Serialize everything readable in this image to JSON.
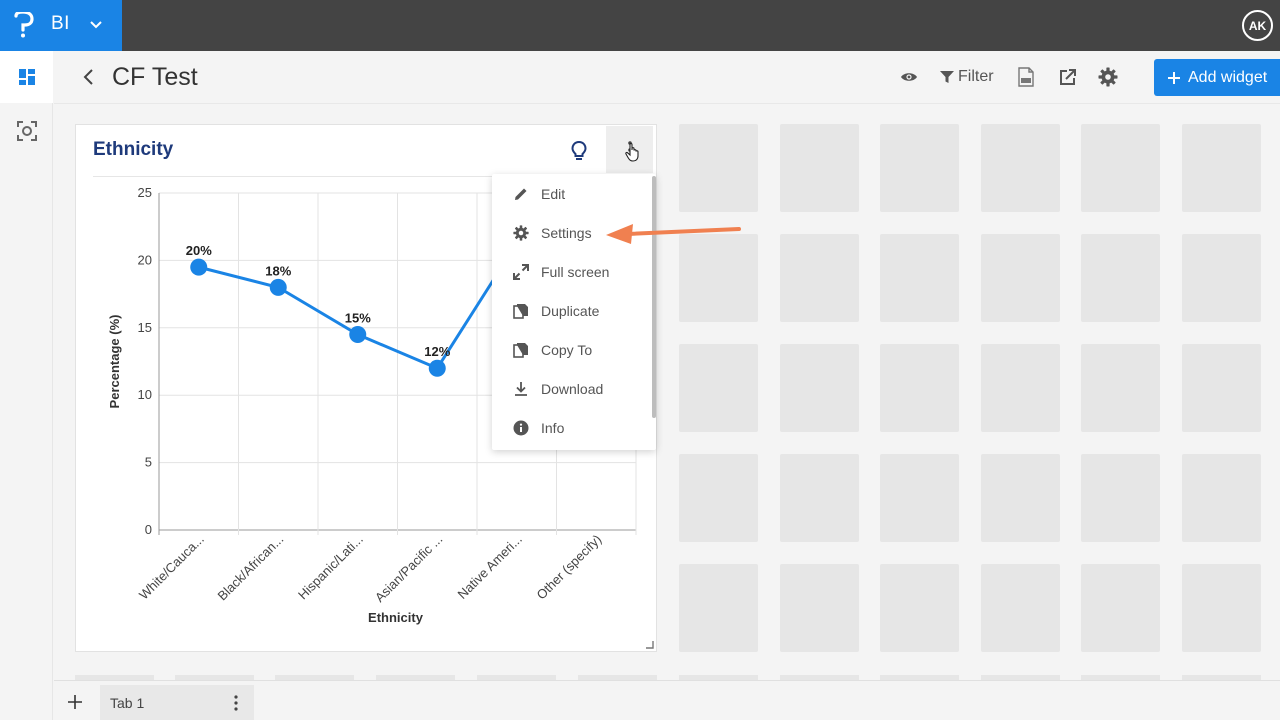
{
  "app": {
    "brand": "BI",
    "user_initials": "AK"
  },
  "header": {
    "title": "CF Test",
    "filter_label": "Filter",
    "add_widget_label": "Add widget"
  },
  "widget": {
    "title": "Ethnicity",
    "menu": [
      {
        "label": "Edit",
        "icon": "pencil-icon"
      },
      {
        "label": "Settings",
        "icon": "gear-icon"
      },
      {
        "label": "Full screen",
        "icon": "expand-icon"
      },
      {
        "label": "Duplicate",
        "icon": "duplicate-icon"
      },
      {
        "label": "Copy To",
        "icon": "copy-icon"
      },
      {
        "label": "Download",
        "icon": "download-icon"
      },
      {
        "label": "Info",
        "icon": "info-icon"
      }
    ]
  },
  "tabs": {
    "active": "Tab 1"
  },
  "colors": {
    "accent": "#1a84e5",
    "topbar": "#444444",
    "line": "#1a84e5",
    "annotation_arrow": "#f08050"
  },
  "chart_data": {
    "type": "line",
    "categories": [
      "White/Cauca...",
      "Black/African...",
      "Hispanic/Lati...",
      "Asian/Pacific ...",
      "Native Ameri...",
      "Other (specify)"
    ],
    "values": [
      19.5,
      18,
      14.5,
      12,
      null,
      null
    ],
    "data_labels": [
      "20%",
      "18%",
      "15%",
      "12%",
      "",
      ""
    ],
    "xlabel": "Ethnicity",
    "ylabel": "Percentage (%)",
    "ylim": [
      0,
      25
    ],
    "yticks": [
      "0",
      "5",
      "10",
      "15",
      "20",
      "25"
    ],
    "grid": true
  }
}
